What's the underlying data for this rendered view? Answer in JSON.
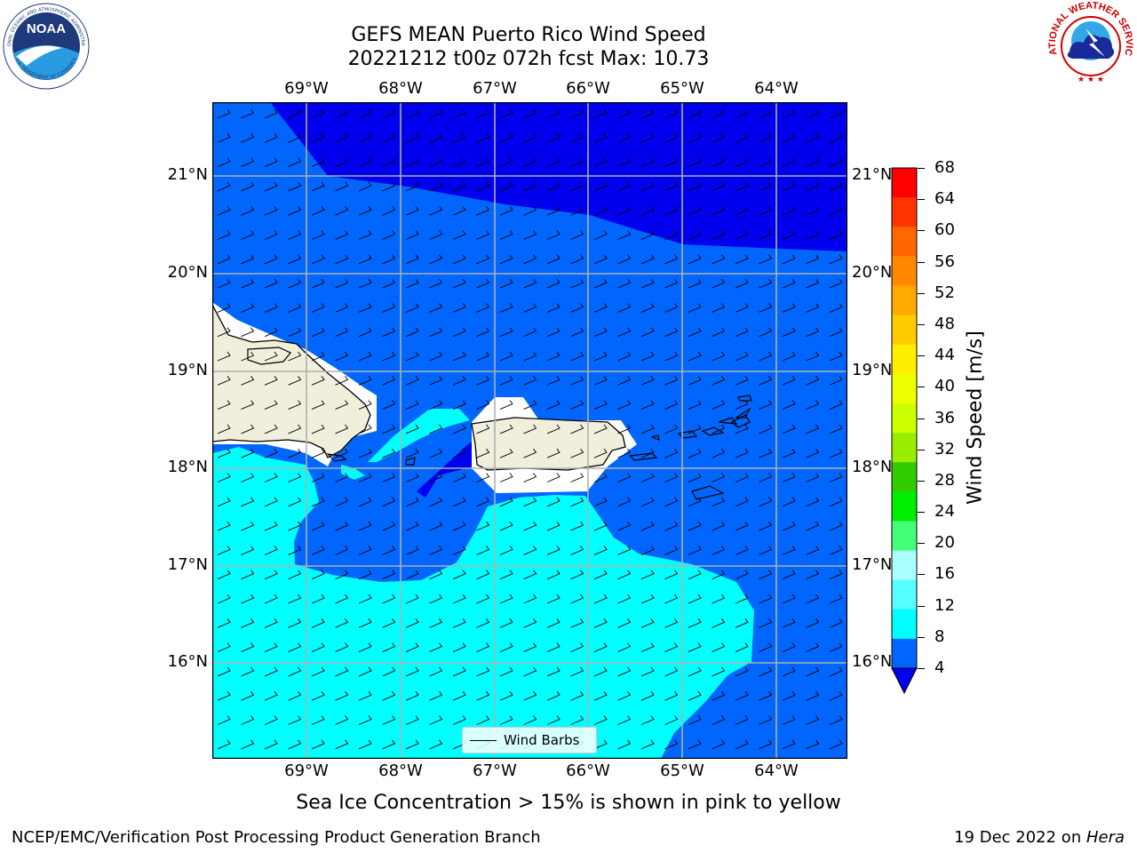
{
  "header": {
    "title_line1": "GEFS MEAN Puerto Rico Wind Speed",
    "title_line2": "20221212 t00z 072h fcst   Max: 10.73"
  },
  "map": {
    "lon_labels": [
      "69°W",
      "68°W",
      "67°W",
      "66°W",
      "65°W",
      "64°W"
    ],
    "lat_labels": [
      "21°N",
      "20°N",
      "19°N",
      "18°N",
      "17°N",
      "16°N"
    ],
    "legend_label": "Wind Barbs",
    "colors": {
      "band_4_8": "#0066ff",
      "band_under_4": "#0000ee",
      "band_8_12": "#00ffff",
      "land": "#efefdc",
      "masked": "#ffffff"
    }
  },
  "colorbar": {
    "label": "Wind Speed [m/s]",
    "ticks": [
      "68",
      "64",
      "60",
      "56",
      "52",
      "48",
      "44",
      "40",
      "36",
      "32",
      "28",
      "24",
      "20",
      "16",
      "12",
      "8",
      "4"
    ],
    "colors": [
      "#ff0000",
      "#ff3300",
      "#ff6600",
      "#ff8800",
      "#ffaa00",
      "#ffcc00",
      "#ffee00",
      "#eeff00",
      "#ccff00",
      "#99ee00",
      "#33cc00",
      "#00ee00",
      "#44ff77",
      "#aaffff",
      "#55ffff",
      "#00ffff",
      "#0066ff"
    ],
    "extend_color": "#0000ee"
  },
  "caption": "Sea Ice Concentration > 15% is shown in pink to yellow",
  "footer": {
    "left": "NCEP/EMC/Verification Post Processing Product Generation Branch",
    "right_prefix": "19 Dec 2022 on ",
    "right_host": "Hera"
  },
  "logos": {
    "noaa_text": "NOAA",
    "noaa_ring_top": "NATIONAL OCEANIC AND ATMOSPHERIC ADMINISTRATION",
    "noaa_ring_bottom": "U.S. DEPARTMENT OF COMMERCE",
    "nws_ring": "NATIONAL WEATHER SERVICE"
  }
}
